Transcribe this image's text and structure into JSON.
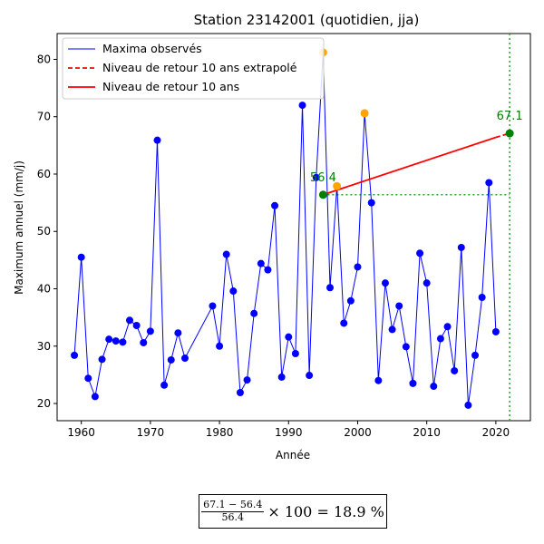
{
  "chart_data": {
    "type": "line",
    "title": "Station 23142001 (quotidien, jja)",
    "xlabel": "Année",
    "ylabel": "Maximum annuel (mm/j)",
    "xlim": [
      1956.5,
      2025
    ],
    "ylim": [
      17,
      84.5
    ],
    "xticks": [
      1960,
      1970,
      1980,
      1990,
      2000,
      2010,
      2020
    ],
    "yticks": [
      20,
      30,
      40,
      50,
      60,
      70,
      80
    ],
    "grid": false,
    "legend_position": "top-left",
    "series": [
      {
        "name": "Maxima observés",
        "color": "#0000ff",
        "x": [
          1959,
          1960,
          1961,
          1962,
          1963,
          1964,
          1965,
          1966,
          1967,
          1968,
          1969,
          1970,
          1971,
          1972,
          1973,
          1974,
          1975,
          1979,
          1980,
          1981,
          1982,
          1983,
          1984,
          1985,
          1986,
          1987,
          1988,
          1989,
          1990,
          1991,
          1992,
          1993,
          1994,
          1995,
          1996,
          1997,
          1998,
          1999,
          2000,
          2001,
          2002,
          2003,
          2004,
          2005,
          2006,
          2007,
          2008,
          2009,
          2010,
          2011,
          2012,
          2013,
          2014,
          2015,
          2016,
          2017,
          2018,
          2019,
          2020
        ],
        "y": [
          28.4,
          45.5,
          24.4,
          21.2,
          27.7,
          31.2,
          30.9,
          30.7,
          34.5,
          33.6,
          30.6,
          32.6,
          65.9,
          23.2,
          27.6,
          32.3,
          27.9,
          37.0,
          30.0,
          46.0,
          39.6,
          21.9,
          24.1,
          35.7,
          44.4,
          43.3,
          54.5,
          24.6,
          31.6,
          28.7,
          72.0,
          24.9,
          59.4,
          81.2,
          40.2,
          57.9,
          34.0,
          37.9,
          43.8,
          70.6,
          55.0,
          24.0,
          41.0,
          32.9,
          37.0,
          29.9,
          23.5,
          46.2,
          41.0,
          23.0,
          31.3,
          33.4,
          25.7,
          47.2,
          19.7,
          28.4,
          38.5,
          58.5,
          32.5
        ]
      },
      {
        "name": "Niveau de retour 10 ans extrapolé",
        "color": "#ff0000",
        "dashed": true,
        "x": [
          2020,
          2022
        ],
        "y": [
          66.4,
          67.1
        ]
      },
      {
        "name": "Niveau de retour 10 ans",
        "color": "#ff0000",
        "dashed": false,
        "x": [
          1995,
          2020
        ],
        "y": [
          56.4,
          66.4
        ]
      }
    ],
    "highlight_points": [
      {
        "x": 1995,
        "y": 81.2,
        "color": "#ffa500"
      },
      {
        "x": 1997,
        "y": 57.9,
        "color": "#ffa500"
      },
      {
        "x": 2001,
        "y": 70.6,
        "color": "#ffa500"
      },
      {
        "x": 1995,
        "y": 56.4,
        "color": "#008000"
      },
      {
        "x": 2022,
        "y": 67.1,
        "color": "#008000"
      }
    ],
    "reference_lines": {
      "vertical_x": 2022,
      "horizontal_y": 56.4,
      "color": "#2ca02c"
    },
    "annotations": [
      {
        "text": "56.4",
        "x": 1995,
        "y": 56.4,
        "color": "#008000"
      },
      {
        "text": "67.1",
        "x": 2022,
        "y": 67.1,
        "color": "#008000"
      }
    ]
  },
  "formula": {
    "numerator": "67.1 − 56.4",
    "denominator": "56.4",
    "tail": "× 100 = 18.9 %"
  }
}
